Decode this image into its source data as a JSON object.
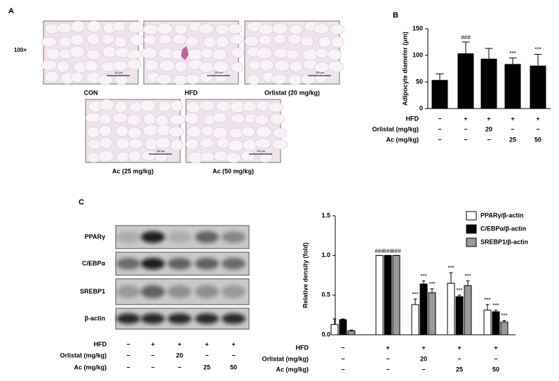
{
  "panel_labels": [
    "A",
    "B",
    "C"
  ],
  "micrographs": {
    "magnification": "100×",
    "scale_bar": "200 μm",
    "captions": [
      "CON",
      "HFD",
      "Orlistat (20 mg/kg)",
      "Ac (25 mg/kg)",
      "Ac (50 mg/kg)"
    ]
  },
  "blot": {
    "rows": [
      "PPARγ",
      "C/EBPα",
      "SREBP1",
      "β-actin"
    ],
    "treatments": [
      {
        "label": "HFD",
        "values": [
          "−",
          "+",
          "+",
          "+",
          "+"
        ]
      },
      {
        "label": "Orlistat (mg/kg)",
        "values": [
          "−",
          "−",
          "20",
          "−",
          "−"
        ]
      },
      {
        "label": "Ac (mg/kg)",
        "values": [
          "−",
          "−",
          "−",
          "25",
          "50"
        ]
      }
    ]
  },
  "chart_data": [
    {
      "type": "bar",
      "y_label": "Adipocyte diameter (μm)",
      "values": [
        53,
        103,
        93,
        83,
        80
      ],
      "errors": [
        12,
        22,
        20,
        12,
        22
      ],
      "annotations": [
        null,
        "###",
        null,
        "***",
        "***"
      ],
      "color": "#000000",
      "ylim": [
        0,
        150
      ],
      "yticks": [
        0,
        50,
        100,
        150
      ],
      "treatments": [
        {
          "label": "HFD",
          "values": [
            "−",
            "+",
            "+",
            "+",
            "+"
          ]
        },
        {
          "label": "Orlistat (mg/kg)",
          "values": [
            "−",
            "−",
            "20",
            "−",
            "−"
          ]
        },
        {
          "label": "Ac (mg/kg)",
          "values": [
            "−",
            "−",
            "−",
            "25",
            "50"
          ]
        }
      ]
    },
    {
      "type": "bar",
      "y_label": "Relative density (fold)",
      "series": [
        {
          "name": "PPARγ/β-actin",
          "color": "#ffffff",
          "values": [
            0.13,
            1.0,
            0.38,
            0.65,
            0.31
          ],
          "errors": [
            0.07,
            0,
            0.07,
            0.13,
            0.07
          ],
          "annotations": [
            null,
            "###",
            "***",
            "***",
            "***"
          ]
        },
        {
          "name": "C/EBPα/β-actin",
          "color": "#000000",
          "values": [
            0.19,
            1.0,
            0.64,
            0.48,
            0.29
          ],
          "errors": [
            0.01,
            0,
            0.04,
            0.02,
            0.02
          ],
          "annotations": [
            null,
            "###",
            "***",
            "***",
            "***"
          ]
        },
        {
          "name": "SREBP1/β-actin",
          "color": "#999999",
          "values": [
            0.05,
            1.0,
            0.53,
            0.62,
            0.16
          ],
          "errors": [
            0.01,
            0,
            0.05,
            0.06,
            0.02
          ],
          "annotations": [
            null,
            "###",
            "***",
            "***",
            "***"
          ]
        }
      ],
      "ylim": [
        0,
        1.5
      ],
      "yticks": [
        {
          "value": 0,
          "label": "0.0"
        },
        0.5,
        {
          "value": 1,
          "label": "1.0"
        },
        1.5
      ],
      "legend": "upper right",
      "treatments": [
        {
          "label": "HFD",
          "values": [
            "−",
            "+",
            "+",
            "+",
            "+"
          ]
        },
        {
          "label": "Orlistat (mg/kg)",
          "values": [
            "−",
            "−",
            "20",
            "−",
            "−"
          ]
        },
        {
          "label": "Ac (mg/kg)",
          "values": [
            "−",
            "−",
            "−",
            "25",
            "50"
          ]
        }
      ]
    }
  ]
}
